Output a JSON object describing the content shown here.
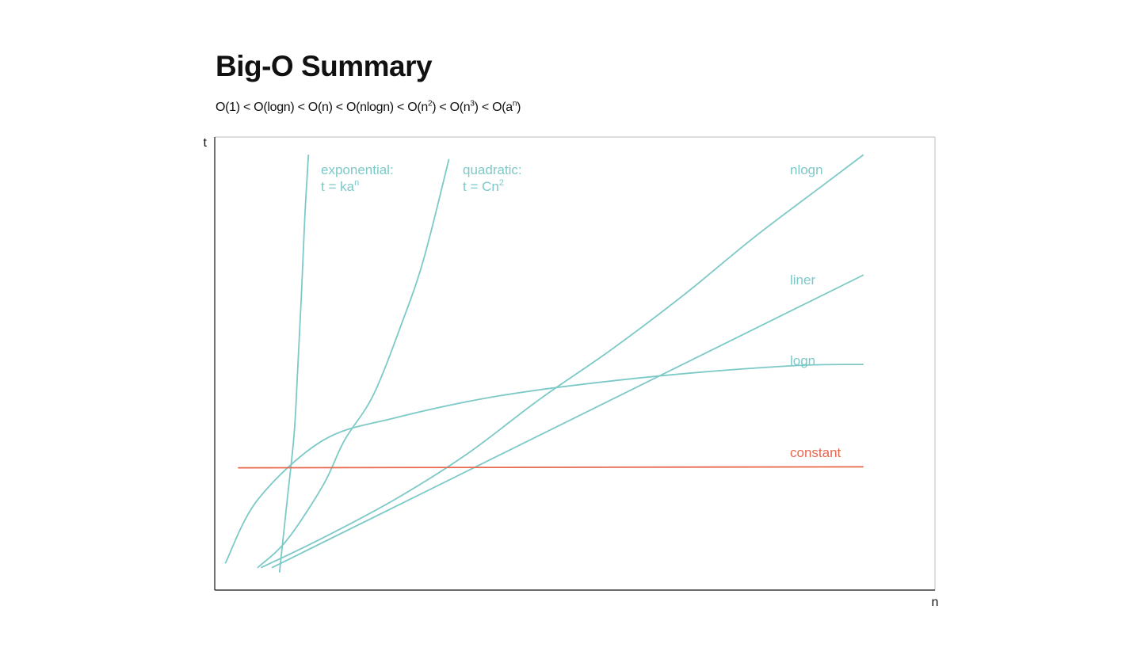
{
  "header": {
    "title": "Big-O Summary",
    "order_terms": [
      "O(1)",
      "O(logn)",
      "O(n)",
      "O(nlogn)",
      "O(n",
      "2",
      ")",
      "O(n",
      "3",
      ")",
      "O(a",
      "n",
      ")"
    ],
    "separator": "<"
  },
  "chart_data": {
    "type": "line",
    "title": "",
    "xlabel": "n",
    "ylabel": "t",
    "xlim": [
      0,
      10
    ],
    "ylim": [
      0,
      10
    ],
    "grid": false,
    "legend": "none",
    "colors": {
      "growth": "#7cc9c8",
      "constant": "#e8674e",
      "axis": "#111111",
      "frame": "#bbbbbb"
    },
    "series": [
      {
        "key": "exponential",
        "label_lines": [
          "exponential:",
          "t = ka",
          "n"
        ],
        "color": "#7cc9c8",
        "x": [
          0.9,
          1.0,
          1.1,
          1.15,
          1.2,
          1.25,
          1.3
        ],
        "y": [
          0.4,
          1.9,
          3.4,
          4.8,
          6.4,
          8.2,
          9.6
        ]
      },
      {
        "key": "quadratic",
        "label_lines": [
          "quadratic:",
          "t = Cn",
          "2"
        ],
        "color": "#7cc9c8",
        "x": [
          0.6,
          1.0,
          1.5,
          1.8,
          2.2,
          2.6,
          2.9,
          3.25
        ],
        "y": [
          0.5,
          1.1,
          2.3,
          3.3,
          4.3,
          5.9,
          7.3,
          9.5
        ]
      },
      {
        "key": "nlogn",
        "label_lines": [
          "nlogn"
        ],
        "color": "#7cc9c8",
        "x": [
          0.65,
          1.5,
          2.5,
          3.5,
          4.5,
          5.5,
          6.5,
          7.5,
          8.5,
          9.0
        ],
        "y": [
          0.5,
          1.15,
          2.0,
          3.0,
          4.2,
          5.3,
          6.5,
          7.8,
          9.0,
          9.6
        ]
      },
      {
        "key": "linear",
        "label_lines": [
          "liner"
        ],
        "color": "#7cc9c8",
        "x": [
          0.8,
          9.0
        ],
        "y": [
          0.5,
          6.95
        ]
      },
      {
        "key": "logn",
        "label_lines": [
          "logn"
        ],
        "color": "#7cc9c8",
        "x": [
          0.15,
          0.6,
          1.5,
          2.5,
          4.0,
          6.0,
          8.0,
          9.0
        ],
        "y": [
          0.6,
          2.0,
          3.3,
          3.8,
          4.3,
          4.7,
          4.95,
          4.98
        ]
      },
      {
        "key": "constant",
        "label_lines": [
          "constant"
        ],
        "color": "#e8674e",
        "x": [
          0.33,
          9.0
        ],
        "y": [
          2.7,
          2.72
        ]
      }
    ]
  }
}
